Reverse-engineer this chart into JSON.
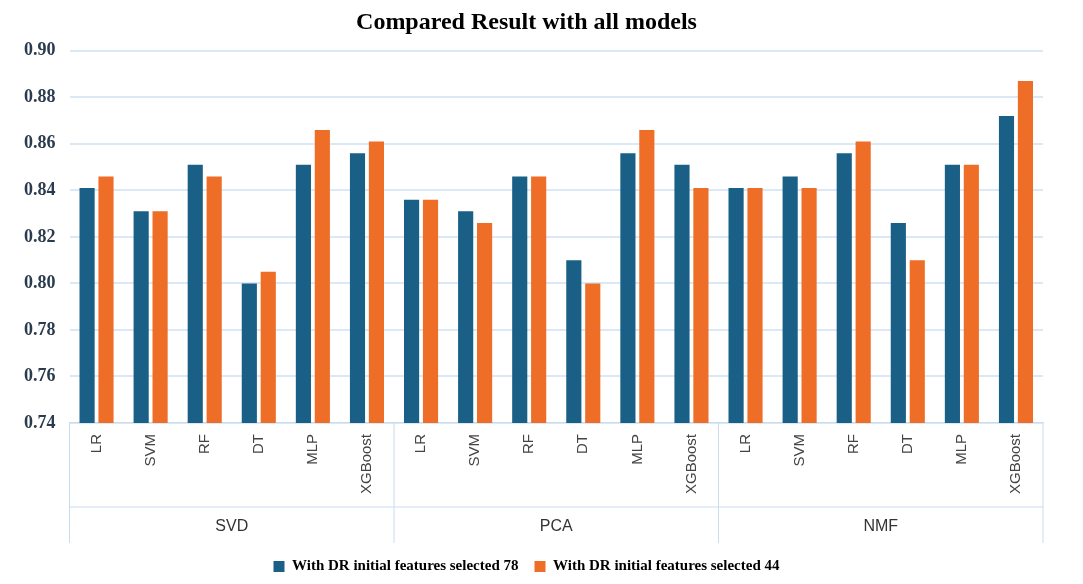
{
  "chart_data": {
    "type": "bar",
    "title": "Compared Result with all models",
    "categories": [
      "LR",
      "SVM",
      "RF",
      "DT",
      "MLP",
      "XGBoost",
      "LR",
      "SVM",
      "RF",
      "DT",
      "MLP",
      "XGBoost",
      "LR",
      "SVM",
      "RF",
      "DT",
      "MLP",
      "XGBoost"
    ],
    "series": [
      {
        "name": "With DR initial features selected 78",
        "color": "#1a5f86",
        "values": [
          0.841,
          0.831,
          0.851,
          0.8,
          0.851,
          0.856,
          0.836,
          0.831,
          0.846,
          0.81,
          0.856,
          0.851,
          0.841,
          0.846,
          0.856,
          0.826,
          0.851,
          0.872
        ]
      },
      {
        "name": "With DR initial features selected 44",
        "color": "#ee6d27",
        "values": [
          0.846,
          0.831,
          0.846,
          0.805,
          0.866,
          0.861,
          0.836,
          0.826,
          0.846,
          0.8,
          0.866,
          0.841,
          0.841,
          0.841,
          0.861,
          0.81,
          0.851,
          0.887
        ]
      }
    ],
    "annotations": [
      "SVD",
      "PCA",
      "NMF"
    ],
    "ylim": [
      0.74,
      0.9
    ],
    "yticks": [
      0.74,
      0.76,
      0.78,
      {
        "value": 0.8,
        "label": "0.80"
      },
      0.82,
      0.84,
      0.86,
      0.88,
      {
        "value": 0.9,
        "label": "0.90"
      }
    ],
    "grid": "y",
    "legend": "bottom"
  }
}
